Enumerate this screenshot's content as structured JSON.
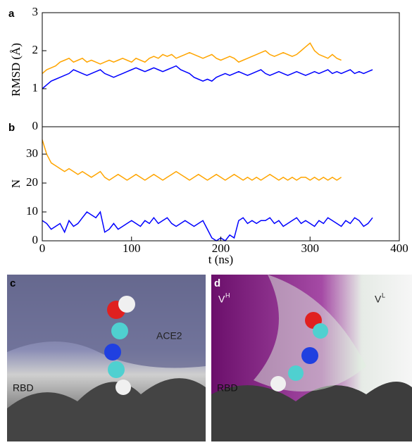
{
  "chart_data": [
    {
      "type": "line",
      "panel": "a",
      "ylabel": "RMSD (Å)",
      "xlim": [
        0,
        400
      ],
      "ylim": [
        0,
        3
      ],
      "yticks": [
        0,
        1,
        2,
        3
      ],
      "x": [
        0,
        5,
        10,
        15,
        20,
        25,
        30,
        35,
        40,
        45,
        50,
        55,
        60,
        65,
        70,
        75,
        80,
        85,
        90,
        95,
        100,
        105,
        110,
        115,
        120,
        125,
        130,
        135,
        140,
        145,
        150,
        155,
        160,
        165,
        170,
        175,
        180,
        185,
        190,
        195,
        200,
        205,
        210,
        215,
        220,
        225,
        230,
        235,
        240,
        245,
        250,
        255,
        260,
        265,
        270,
        275,
        280,
        285,
        290,
        295,
        300,
        305,
        310,
        315,
        320,
        325,
        330,
        335,
        340,
        345,
        350,
        355,
        360,
        365,
        370
      ],
      "series": [
        {
          "color": "#ffa500",
          "values": [
            1.4,
            1.5,
            1.55,
            1.6,
            1.7,
            1.75,
            1.8,
            1.7,
            1.75,
            1.8,
            1.7,
            1.75,
            1.7,
            1.65,
            1.7,
            1.75,
            1.7,
            1.75,
            1.8,
            1.75,
            1.7,
            1.8,
            1.75,
            1.7,
            1.8,
            1.85,
            1.8,
            1.9,
            1.85,
            1.9,
            1.8,
            1.85,
            1.9,
            1.95,
            1.9,
            1.85,
            1.8,
            1.85,
            1.9,
            1.8,
            1.75,
            1.8,
            1.85,
            1.8,
            1.7,
            1.75,
            1.8,
            1.85,
            1.9,
            1.95,
            2.0,
            1.9,
            1.85,
            1.9,
            1.95,
            1.9,
            1.85,
            1.9,
            2.0,
            2.1,
            2.2,
            2.0,
            1.9,
            1.85,
            1.8,
            1.9,
            1.8,
            1.75,
            null,
            null,
            null,
            null,
            null,
            null,
            null
          ]
        },
        {
          "color": "#0000ff",
          "values": [
            1.0,
            1.1,
            1.2,
            1.25,
            1.3,
            1.35,
            1.4,
            1.5,
            1.45,
            1.4,
            1.35,
            1.4,
            1.45,
            1.5,
            1.4,
            1.35,
            1.3,
            1.35,
            1.4,
            1.45,
            1.5,
            1.55,
            1.5,
            1.45,
            1.5,
            1.55,
            1.5,
            1.45,
            1.5,
            1.55,
            1.6,
            1.5,
            1.45,
            1.4,
            1.3,
            1.25,
            1.2,
            1.25,
            1.2,
            1.3,
            1.35,
            1.4,
            1.35,
            1.4,
            1.45,
            1.4,
            1.35,
            1.4,
            1.45,
            1.5,
            1.4,
            1.35,
            1.4,
            1.45,
            1.4,
            1.35,
            1.4,
            1.45,
            1.4,
            1.35,
            1.4,
            1.45,
            1.4,
            1.45,
            1.5,
            1.4,
            1.45,
            1.4,
            1.45,
            1.5,
            1.4,
            1.45,
            1.4,
            1.45,
            1.5
          ]
        }
      ]
    },
    {
      "type": "line",
      "panel": "b",
      "ylabel": "N",
      "xlabel": "t (ns)",
      "xlim": [
        0,
        400
      ],
      "xticks": [
        0,
        100,
        200,
        300,
        400
      ],
      "ylim": [
        0,
        39.5
      ],
      "yticks": [
        0,
        10,
        20,
        30
      ],
      "x": [
        0,
        5,
        10,
        15,
        20,
        25,
        30,
        35,
        40,
        45,
        50,
        55,
        60,
        65,
        70,
        75,
        80,
        85,
        90,
        95,
        100,
        105,
        110,
        115,
        120,
        125,
        130,
        135,
        140,
        145,
        150,
        155,
        160,
        165,
        170,
        175,
        180,
        185,
        190,
        195,
        200,
        205,
        210,
        215,
        220,
        225,
        230,
        235,
        240,
        245,
        250,
        255,
        260,
        265,
        270,
        275,
        280,
        285,
        290,
        295,
        300,
        305,
        310,
        315,
        320,
        325,
        330,
        335,
        340,
        345,
        350,
        355,
        360,
        365,
        370
      ],
      "series": [
        {
          "color": "#ffa500",
          "values": [
            35,
            30,
            27,
            26,
            25,
            24,
            25,
            24,
            23,
            24,
            23,
            22,
            23,
            24,
            22,
            21,
            22,
            23,
            22,
            21,
            22,
            23,
            22,
            21,
            22,
            23,
            22,
            21,
            22,
            23,
            24,
            23,
            22,
            21,
            22,
            23,
            22,
            21,
            22,
            23,
            22,
            21,
            22,
            23,
            22,
            21,
            22,
            21,
            22,
            21,
            22,
            23,
            22,
            21,
            22,
            21,
            22,
            21,
            22,
            22,
            21,
            22,
            21,
            22,
            21,
            22,
            21,
            22,
            null,
            null,
            null,
            null,
            null,
            null,
            null
          ]
        },
        {
          "color": "#0000ff",
          "values": [
            7,
            6,
            4,
            5,
            6,
            3,
            7,
            5,
            6,
            8,
            10,
            9,
            8,
            10,
            3,
            4,
            6,
            4,
            5,
            6,
            7,
            6,
            5,
            7,
            6,
            8,
            6,
            7,
            8,
            6,
            5,
            6,
            7,
            6,
            5,
            6,
            7,
            4,
            1,
            0,
            1,
            0,
            2,
            1,
            7,
            8,
            6,
            7,
            6,
            7,
            7,
            8,
            6,
            7,
            5,
            6,
            7,
            8,
            6,
            7,
            6,
            5,
            7,
            6,
            8,
            7,
            6,
            5,
            7,
            6,
            8,
            7,
            5,
            6,
            8
          ]
        }
      ]
    }
  ],
  "images": [
    {
      "label": "c",
      "texts": [
        "ACE2",
        "RBD"
      ]
    },
    {
      "label": "d",
      "texts": [
        "RBD"
      ],
      "chains": [
        {
          "base": "V",
          "sup": "H"
        },
        {
          "base": "V",
          "sup": "L"
        }
      ]
    }
  ]
}
